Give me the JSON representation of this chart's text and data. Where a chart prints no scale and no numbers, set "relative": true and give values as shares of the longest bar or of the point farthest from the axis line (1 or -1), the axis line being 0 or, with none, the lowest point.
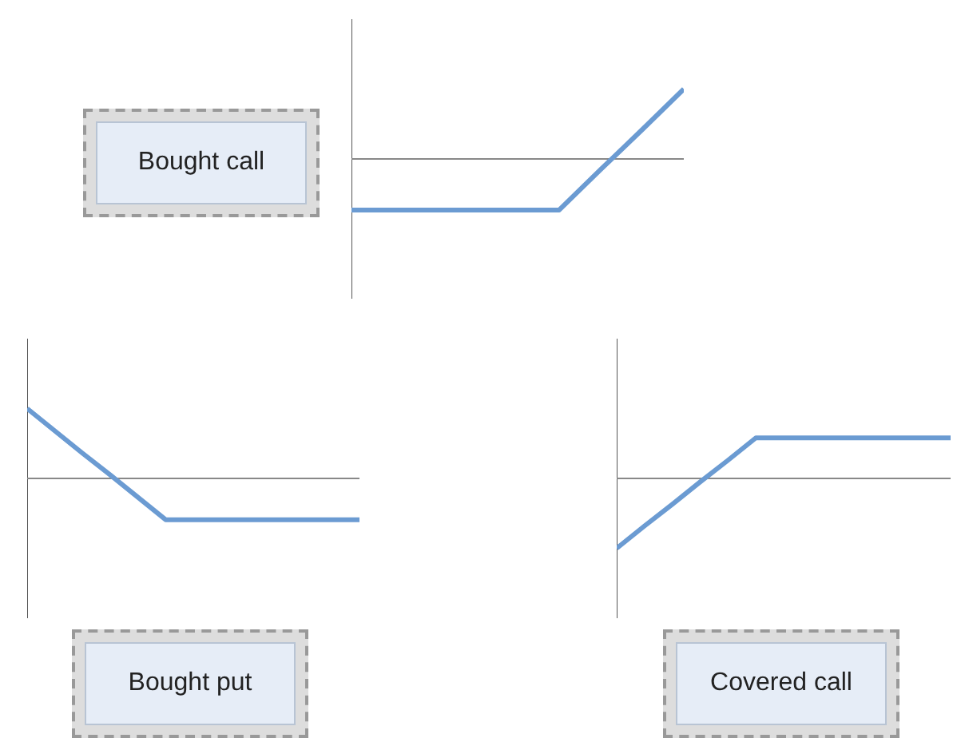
{
  "chart_data": [
    {
      "type": "line",
      "title": "Bought call",
      "relative": true,
      "marker": "none",
      "categories": [
        null,
        null,
        null,
        null,
        null,
        null,
        null,
        null,
        null
      ],
      "series": [
        {
          "color": "#6b9bd2",
          "values": [
            -0.73,
            -0.73,
            -0.73,
            -0.73,
            -0.73,
            -0.73,
            -0.15,
            0.42,
            1
          ]
        }
      ]
    },
    {
      "type": "line",
      "title": "Bought put",
      "relative": true,
      "marker": "none",
      "categories": [
        null,
        null,
        null,
        null,
        null,
        null,
        null,
        null,
        null,
        null,
        null,
        null,
        null
      ],
      "series": [
        {
          "color": "#6b9bd2",
          "values": [
            1,
            0.68,
            0.36,
            0.05,
            -0.27,
            -0.59,
            -0.59,
            -0.59,
            -0.59,
            -0.59,
            -0.59,
            -0.59,
            -0.59
          ]
        }
      ]
    },
    {
      "type": "line",
      "title": "Covered call",
      "relative": true,
      "marker": "none",
      "categories": [
        null,
        null,
        null,
        null,
        null,
        null,
        null,
        null,
        null,
        null,
        null,
        null,
        null
      ],
      "series": [
        {
          "color": "#6b9bd2",
          "values": [
            -1,
            -0.68,
            -0.37,
            -0.05,
            0.26,
            0.58,
            0.58,
            0.58,
            0.58,
            0.58,
            0.58,
            0.58,
            0.58
          ]
        }
      ]
    }
  ]
}
